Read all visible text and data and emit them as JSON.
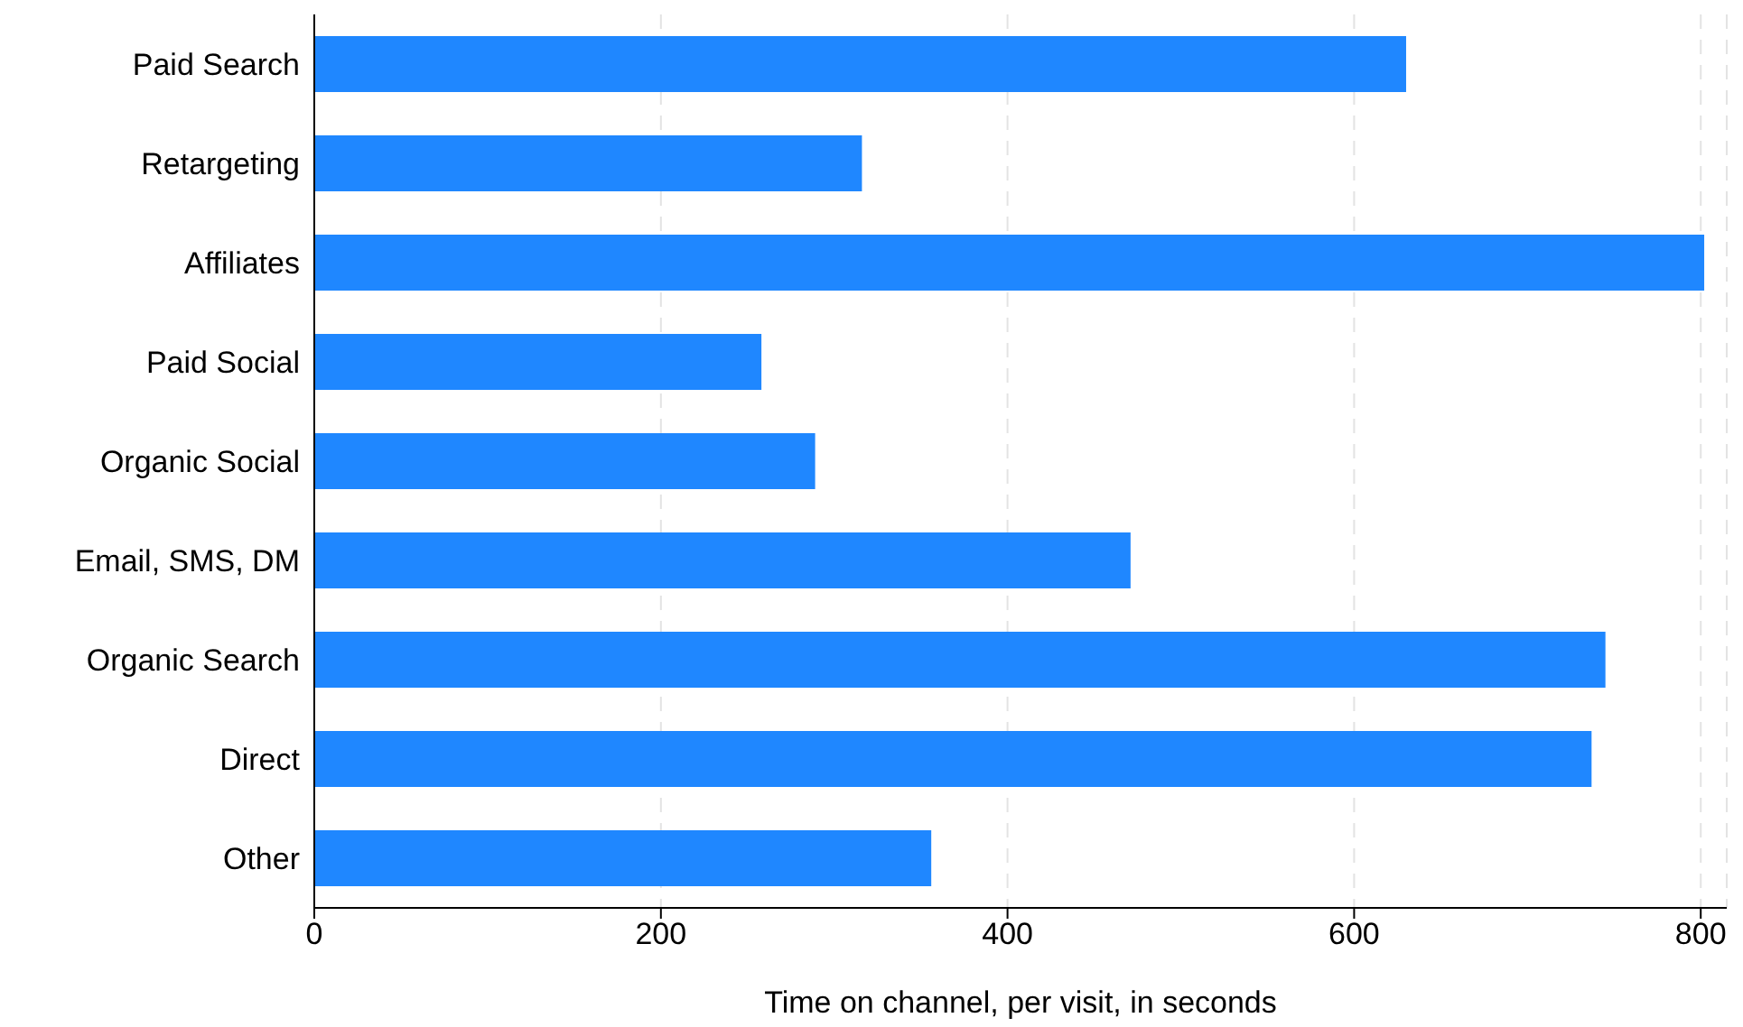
{
  "chart_data": {
    "type": "bar",
    "orientation": "horizontal",
    "xlabel": "Time on channel, per visit, in seconds",
    "categories": [
      "Paid Search",
      "Retargeting",
      "Affiliates",
      "Paid Social",
      "Organic Social",
      "Email, SMS, DM",
      "Organic Search",
      "Direct",
      "Other"
    ],
    "values": [
      630,
      316,
      802,
      258,
      289,
      471,
      745,
      737,
      356
    ],
    "color": "#1f87ff",
    "xlim": [
      0,
      815
    ],
    "xticks": [
      0,
      200,
      400,
      600,
      800
    ],
    "grid": "x"
  }
}
